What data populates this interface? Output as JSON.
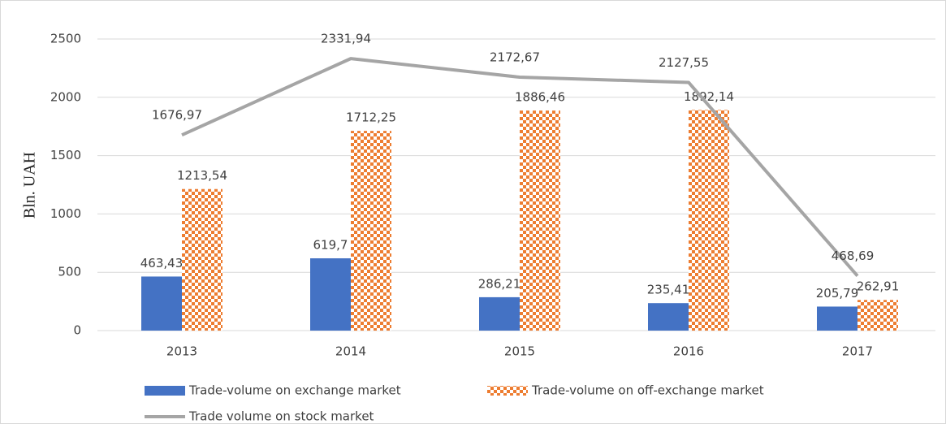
{
  "chart_data": {
    "type": "bar",
    "y_label": "Bln. UAH",
    "categories": [
      "2013",
      "2014",
      "2015",
      "2016",
      "2017"
    ],
    "ylim": [
      0,
      2500
    ],
    "yticks": [
      0,
      500,
      1000,
      1500,
      2000,
      2500
    ],
    "grid": true,
    "series": [
      {
        "name": "Trade-volume on exchange market",
        "color": "#4472c4",
        "kind": "bar",
        "values": [
          463.43,
          619.7,
          286.21,
          235.41,
          205.79
        ],
        "value_labels": [
          "463,43",
          "619,7",
          "286,21",
          "235,41",
          "205,79"
        ]
      },
      {
        "name": "Trade-volume on off-exchange market",
        "color": "#ed7d31",
        "kind": "bar",
        "pattern": "checker",
        "values": [
          1213.54,
          1712.25,
          1886.46,
          1892.14,
          262.91
        ],
        "value_labels": [
          "1213,54",
          "1712,25",
          "1886,46",
          "1892,14",
          "262,91"
        ]
      },
      {
        "name": "Trade volume on stock market",
        "color": "#a5a5a5",
        "kind": "line",
        "values": [
          1676.97,
          2331.94,
          2172.67,
          2127.55,
          468.69
        ],
        "value_labels": [
          "1676,97",
          "2331,94",
          "2172,67",
          "2127,55",
          "468,69"
        ]
      }
    ]
  }
}
